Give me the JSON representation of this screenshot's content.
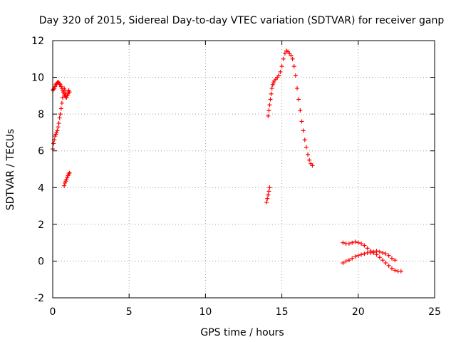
{
  "chart_data": {
    "type": "scatter",
    "title": "Day 320 of 2015, Sidereal Day-to-day VTEC variation (SDTVAR) for receiver ganp",
    "xlabel": "GPS time / hours",
    "ylabel": "SDTVAR / TECUs",
    "xlim": [
      0,
      25
    ],
    "ylim": [
      -2,
      12
    ],
    "xticks": [
      "0",
      "5",
      "10",
      "15",
      "20",
      "25"
    ],
    "yticks": [
      "-2",
      "0",
      "2",
      "4",
      "6",
      "8",
      "10",
      "12"
    ],
    "grid": true,
    "marker": "plus",
    "color": "#ff0000",
    "series": [
      {
        "x": [
          0.0,
          0.05,
          0.1,
          0.15,
          0.2,
          0.25,
          0.3,
          0.35,
          0.4,
          0.45,
          0.5,
          0.55,
          0.6,
          0.65,
          0.7,
          0.75,
          0.8,
          0.85,
          0.9,
          0.95,
          1.0,
          1.05,
          1.1
        ],
        "y": [
          6.1,
          6.4,
          6.6,
          6.8,
          6.9,
          7.0,
          7.1,
          7.3,
          7.5,
          7.8,
          8.0,
          8.3,
          8.6,
          8.9,
          9.2,
          9.4,
          9.3,
          9.1,
          8.9,
          9.0,
          9.2,
          9.3,
          9.2
        ]
      },
      {
        "x": [
          0.0,
          0.05,
          0.1,
          0.15,
          0.2,
          0.25,
          0.3,
          0.35,
          0.4,
          0.45,
          0.5,
          0.55,
          0.6,
          0.65,
          0.7,
          0.75,
          0.8,
          0.85,
          0.9,
          0.95,
          1.0,
          1.05
        ],
        "y": [
          9.3,
          9.35,
          9.4,
          9.5,
          9.6,
          9.65,
          9.7,
          9.75,
          9.7,
          9.65,
          9.6,
          9.5,
          9.4,
          9.3,
          9.2,
          9.1,
          9.0,
          8.95,
          8.9,
          9.0,
          9.1,
          9.2
        ]
      },
      {
        "x": [
          0.75,
          0.8,
          0.85,
          0.9,
          0.95,
          1.0,
          1.05,
          1.1
        ],
        "y": [
          4.1,
          4.25,
          4.35,
          4.45,
          4.55,
          4.65,
          4.75,
          4.8
        ]
      },
      {
        "x": [
          14.0,
          14.05,
          14.1,
          14.15,
          14.2
        ],
        "y": [
          3.2,
          3.4,
          3.6,
          3.8,
          4.0
        ]
      },
      {
        "x": [
          14.1,
          14.15,
          14.2,
          14.25,
          14.3,
          14.35,
          14.4,
          14.45,
          14.5,
          14.6,
          14.7,
          14.8,
          14.9,
          15.0,
          15.1,
          15.2,
          15.3,
          15.4,
          15.5,
          15.6,
          15.7,
          15.8,
          15.9,
          16.0,
          16.1,
          16.2,
          16.3,
          16.4,
          16.5,
          16.6,
          16.7,
          16.8,
          16.9,
          17.0
        ],
        "y": [
          7.9,
          8.2,
          8.5,
          8.8,
          9.1,
          9.4,
          9.6,
          9.7,
          9.8,
          9.9,
          10.0,
          10.1,
          10.3,
          10.6,
          11.0,
          11.3,
          11.45,
          11.4,
          11.3,
          11.2,
          11.0,
          10.6,
          10.1,
          9.4,
          8.8,
          8.2,
          7.6,
          7.1,
          6.6,
          6.2,
          5.8,
          5.5,
          5.3,
          5.2
        ]
      },
      {
        "x": [
          19.0,
          19.2,
          19.4,
          19.6,
          19.8,
          20.0,
          20.2,
          20.4,
          20.6,
          20.8,
          21.0,
          21.2,
          21.4,
          21.6,
          21.8,
          22.0,
          22.2,
          22.4,
          22.6,
          22.8
        ],
        "y": [
          1.0,
          0.95,
          0.95,
          1.0,
          1.05,
          1.0,
          0.95,
          0.85,
          0.7,
          0.55,
          0.45,
          0.35,
          0.2,
          0.05,
          -0.1,
          -0.25,
          -0.4,
          -0.5,
          -0.55,
          -0.55
        ]
      },
      {
        "x": [
          19.0,
          19.2,
          19.4,
          19.6,
          19.8,
          20.0,
          20.2,
          20.4,
          20.6,
          20.8,
          21.0,
          21.2,
          21.4,
          21.6,
          21.8,
          22.0,
          22.2,
          22.4
        ],
        "y": [
          -0.1,
          0.0,
          0.05,
          0.15,
          0.25,
          0.3,
          0.35,
          0.4,
          0.45,
          0.45,
          0.5,
          0.55,
          0.5,
          0.45,
          0.4,
          0.3,
          0.15,
          0.05
        ]
      }
    ]
  }
}
